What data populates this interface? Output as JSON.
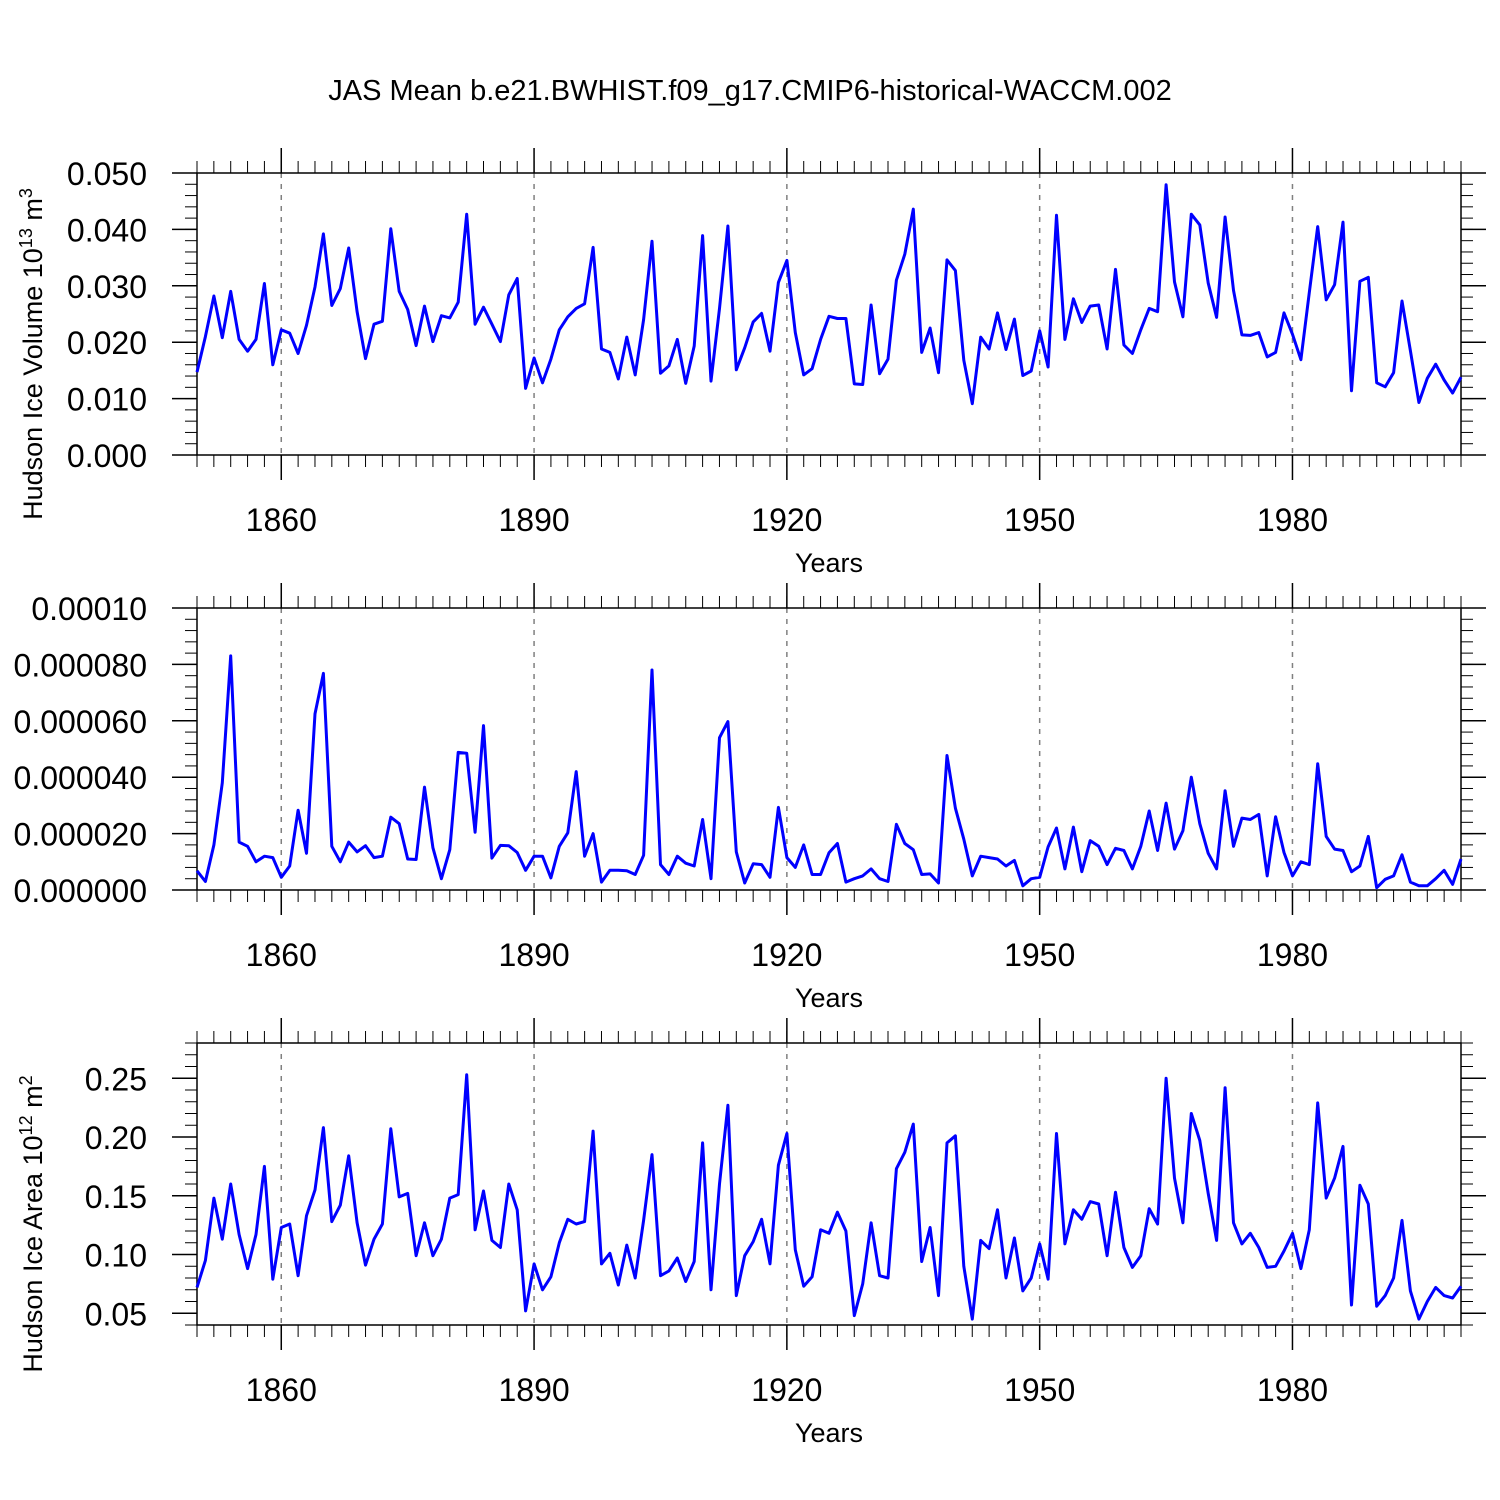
{
  "title": "JAS Mean b.e21.BWHIST.f09_g17.CMIP6-historical-WACCM.002",
  "colors": {
    "series": "#0000ff",
    "axis": "#000000",
    "grid": "#808080"
  },
  "chart_data": [
    {
      "type": "line",
      "name": "volume",
      "title": "JAS Mean b.e21.BWHIST.f09_g17.CMIP6-historical-WACCM.002",
      "xlabel": "Years",
      "ylabel": "Hudson Ice Volume 10",
      "ylabel_sup": "13",
      "ylabel_unit": "m",
      "ylabel_unit_sup": "3",
      "xlim": [
        1850,
        2000
      ],
      "ylim": [
        0,
        0.05
      ],
      "grid": "vertical dashed at major x ticks",
      "x_ticks": [
        "1860",
        "1890",
        "1920",
        "1950",
        "1980"
      ],
      "y_ticks": [
        "0.000",
        "0.010",
        "0.020",
        "0.030",
        "0.040",
        "0.050"
      ],
      "series": [
        {
          "name": "Hudson Ice Volume",
          "x_start": 1850,
          "x_step": 1,
          "values": [
            0.0147,
            0.021,
            0.0282,
            0.0208,
            0.029,
            0.0205,
            0.0184,
            0.0205,
            0.0304,
            0.016,
            0.0222,
            0.0216,
            0.018,
            0.023,
            0.0298,
            0.0392,
            0.0265,
            0.0295,
            0.0367,
            0.0254,
            0.0171,
            0.0232,
            0.0237,
            0.0401,
            0.029,
            0.0258,
            0.0194,
            0.0264,
            0.0201,
            0.0247,
            0.0243,
            0.0271,
            0.0427,
            0.0232,
            0.0262,
            0.0232,
            0.0201,
            0.0284,
            0.0313,
            0.0118,
            0.0172,
            0.0128,
            0.017,
            0.0222,
            0.0245,
            0.026,
            0.0268,
            0.0368,
            0.0188,
            0.0182,
            0.0135,
            0.0209,
            0.0142,
            0.024,
            0.0379,
            0.0145,
            0.0158,
            0.0205,
            0.0127,
            0.0193,
            0.0389,
            0.0131,
            0.026,
            0.0406,
            0.0151,
            0.019,
            0.0236,
            0.0251,
            0.0184,
            0.0306,
            0.0345,
            0.0217,
            0.0142,
            0.0153,
            0.0205,
            0.0246,
            0.0242,
            0.0242,
            0.0126,
            0.0125,
            0.0266,
            0.0144,
            0.017,
            0.031,
            0.0356,
            0.0436,
            0.0182,
            0.0225,
            0.0146,
            0.0346,
            0.0327,
            0.0168,
            0.0091,
            0.0209,
            0.0188,
            0.0252,
            0.0187,
            0.0241,
            0.0141,
            0.0149,
            0.022,
            0.0156,
            0.0425,
            0.0205,
            0.0277,
            0.0235,
            0.0264,
            0.0266,
            0.0188,
            0.0329,
            0.0195,
            0.018,
            0.0222,
            0.026,
            0.0254,
            0.0479,
            0.0307,
            0.0245,
            0.0427,
            0.0408,
            0.0305,
            0.0244,
            0.0422,
            0.0292,
            0.0213,
            0.0212,
            0.0217,
            0.0174,
            0.0182,
            0.0252,
            0.0214,
            0.0169,
            0.0288,
            0.0405,
            0.0275,
            0.0302,
            0.0413,
            0.0114,
            0.0308,
            0.0315,
            0.0128,
            0.0121,
            0.0146,
            0.0273,
            0.0185,
            0.0093,
            0.0136,
            0.0161,
            0.0133,
            0.011,
            0.0138
          ]
        }
      ]
    },
    {
      "type": "line",
      "name": "snow",
      "xlabel": "Years",
      "ylabel": "",
      "xlim": [
        1850,
        2000
      ],
      "ylim": [
        0,
        0.0001
      ],
      "grid": "vertical dashed at major x ticks",
      "x_ticks": [
        "1860",
        "1890",
        "1920",
        "1950",
        "1980"
      ],
      "y_ticks": [
        "0.000000",
        "0.000020",
        "0.000040",
        "0.000060",
        "0.000080",
        "0.00010"
      ],
      "series": [
        {
          "name": "series",
          "x_start": 1850,
          "x_step": 1,
          "values": [
            6.8e-06,
            3e-06,
            1.6e-05,
            3.8e-05,
            8.3e-05,
            1.7e-05,
            1.55e-05,
            1e-05,
            1.2e-05,
            1.15e-05,
            4.5e-06,
            8.5e-06,
            2.83e-05,
            1.3e-05,
            6.25e-05,
            7.68e-05,
            1.55e-05,
            1e-05,
            1.7e-05,
            1.35e-05,
            1.57e-05,
            1.15e-05,
            1.2e-05,
            2.58e-05,
            2.35e-05,
            1.1e-05,
            1.08e-05,
            3.65e-05,
            1.5e-05,
            4e-06,
            1.43e-05,
            4.88e-05,
            4.85e-05,
            2.05e-05,
            5.83e-05,
            1.13e-05,
            1.58e-05,
            1.57e-05,
            1.33e-05,
            7e-06,
            1.2e-05,
            1.2e-05,
            4.3e-06,
            1.55e-05,
            2.03e-05,
            4.2e-05,
            1.2e-05,
            2e-05,
            2.8e-06,
            7e-06,
            7e-06,
            6.8e-06,
            5.5e-06,
            1.23e-05,
            7.8e-05,
            9e-06,
            5.5e-06,
            1.2e-05,
            9.5e-06,
            8.5e-06,
            2.5e-05,
            4e-06,
            5.4e-05,
            5.97e-05,
            1.35e-05,
            2.5e-06,
            9.3e-06,
            9e-06,
            4.5e-06,
            2.93e-05,
            1.15e-05,
            8e-06,
            1.6e-05,
            5.5e-06,
            5.5e-06,
            1.32e-05,
            1.65e-05,
            2.8e-06,
            4e-06,
            5e-06,
            7.5e-06,
            4e-06,
            3e-06,
            2.33e-05,
            1.65e-05,
            1.43e-05,
            5.5e-06,
            5.7e-06,
            2.5e-06,
            4.77e-05,
            2.9e-05,
            1.8e-05,
            5e-06,
            1.2e-05,
            1.15e-05,
            1.1e-05,
            8.5e-06,
            1.05e-05,
            1.5e-06,
            4e-06,
            4.5e-06,
            1.53e-05,
            2.2e-05,
            7.5e-06,
            2.23e-05,
            6.5e-06,
            1.75e-05,
            1.55e-05,
            9e-06,
            1.48e-05,
            1.4e-05,
            7.5e-06,
            1.55e-05,
            2.8e-05,
            1.4e-05,
            3.08e-05,
            1.45e-05,
            2.1e-05,
            4e-05,
            2.35e-05,
            1.3e-05,
            7.5e-06,
            3.52e-05,
            1.55e-05,
            2.55e-05,
            2.5e-05,
            2.68e-05,
            5e-06,
            2.6e-05,
            1.33e-05,
            5e-06,
            1e-05,
            9e-06,
            4.48e-05,
            1.9e-05,
            1.45e-05,
            1.4e-05,
            6.5e-06,
            8.5e-06,
            1.9e-05,
            8e-07,
            3.8e-06,
            5e-06,
            1.25e-05,
            2.8e-06,
            1.5e-06,
            1.5e-06,
            4e-06,
            7e-06,
            2e-06,
            1.1e-05
          ]
        }
      ]
    },
    {
      "type": "line",
      "name": "area",
      "xlabel": "Years",
      "ylabel": "Hudson Ice Area 10",
      "ylabel_sup": "12",
      "ylabel_unit": "m",
      "ylabel_unit_sup": "2",
      "xlim": [
        1850,
        2000
      ],
      "ylim": [
        0.04,
        0.28
      ],
      "grid": "vertical dashed at major x ticks",
      "x_ticks": [
        "1860",
        "1890",
        "1920",
        "1950",
        "1980"
      ],
      "y_ticks": [
        "0.05",
        "0.10",
        "0.15",
        "0.20",
        "0.25"
      ],
      "series": [
        {
          "name": "Hudson Ice Area",
          "x_start": 1850,
          "x_step": 1,
          "values": [
            0.072,
            0.095,
            0.148,
            0.113,
            0.16,
            0.117,
            0.088,
            0.117,
            0.175,
            0.079,
            0.123,
            0.126,
            0.082,
            0.133,
            0.155,
            0.208,
            0.128,
            0.142,
            0.184,
            0.127,
            0.091,
            0.113,
            0.126,
            0.207,
            0.149,
            0.152,
            0.099,
            0.127,
            0.099,
            0.113,
            0.148,
            0.151,
            0.253,
            0.121,
            0.154,
            0.112,
            0.106,
            0.16,
            0.138,
            0.052,
            0.092,
            0.07,
            0.081,
            0.11,
            0.13,
            0.126,
            0.128,
            0.205,
            0.092,
            0.101,
            0.074,
            0.108,
            0.08,
            0.129,
            0.185,
            0.082,
            0.086,
            0.097,
            0.077,
            0.094,
            0.195,
            0.07,
            0.16,
            0.227,
            0.065,
            0.099,
            0.111,
            0.13,
            0.092,
            0.176,
            0.203,
            0.104,
            0.073,
            0.081,
            0.121,
            0.118,
            0.136,
            0.12,
            0.048,
            0.075,
            0.127,
            0.082,
            0.08,
            0.173,
            0.187,
            0.211,
            0.094,
            0.123,
            0.065,
            0.195,
            0.201,
            0.09,
            0.045,
            0.112,
            0.105,
            0.138,
            0.08,
            0.114,
            0.069,
            0.08,
            0.109,
            0.079,
            0.203,
            0.109,
            0.138,
            0.13,
            0.145,
            0.143,
            0.099,
            0.153,
            0.106,
            0.089,
            0.099,
            0.139,
            0.126,
            0.25,
            0.165,
            0.127,
            0.22,
            0.197,
            0.152,
            0.112,
            0.242,
            0.127,
            0.109,
            0.118,
            0.106,
            0.089,
            0.09,
            0.103,
            0.118,
            0.088,
            0.121,
            0.229,
            0.148,
            0.165,
            0.192,
            0.057,
            0.159,
            0.143,
            0.056,
            0.065,
            0.08,
            0.129,
            0.069,
            0.045,
            0.06,
            0.072,
            0.065,
            0.063,
            0.073
          ]
        }
      ]
    }
  ]
}
